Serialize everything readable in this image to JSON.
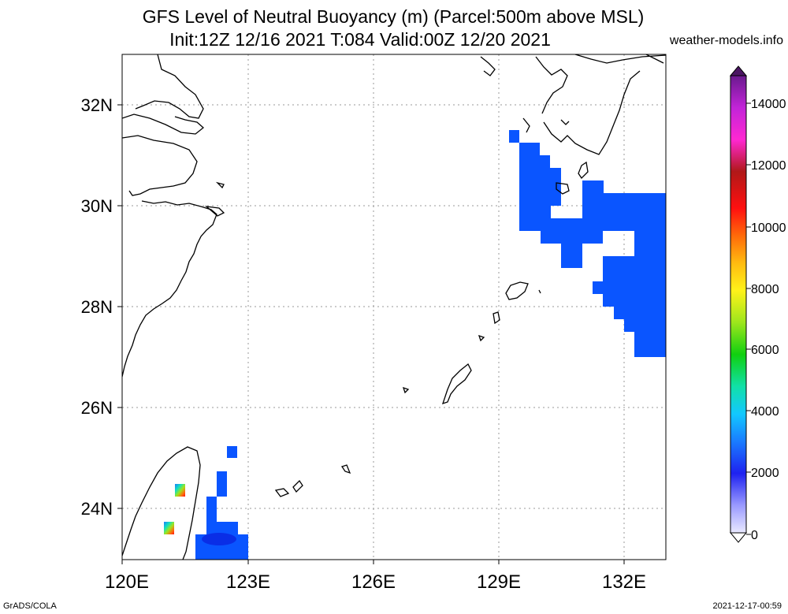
{
  "title_line1": "GFS Level of Neutral Buoyancy (m) (Parcel:500m above MSL)",
  "title_line2": "Init:12Z 12/16 2021 T:084 Valid:00Z 12/20 2021",
  "credit": "weather-models.info",
  "footer_left": "GrADS/COLA",
  "footer_right": "2021-12-17-00:59",
  "lat_labels": [
    "32N",
    "30N",
    "28N",
    "26N",
    "24N"
  ],
  "lon_labels": [
    "120E",
    "123E",
    "126E",
    "129E",
    "132E"
  ],
  "colorbar_labels": [
    "14000",
    "12000",
    "10000",
    "8000",
    "6000",
    "4000",
    "2000",
    "0"
  ],
  "colors": {
    "field_blue": "#0a55ff",
    "field_dark": "#0a2ee6"
  }
}
